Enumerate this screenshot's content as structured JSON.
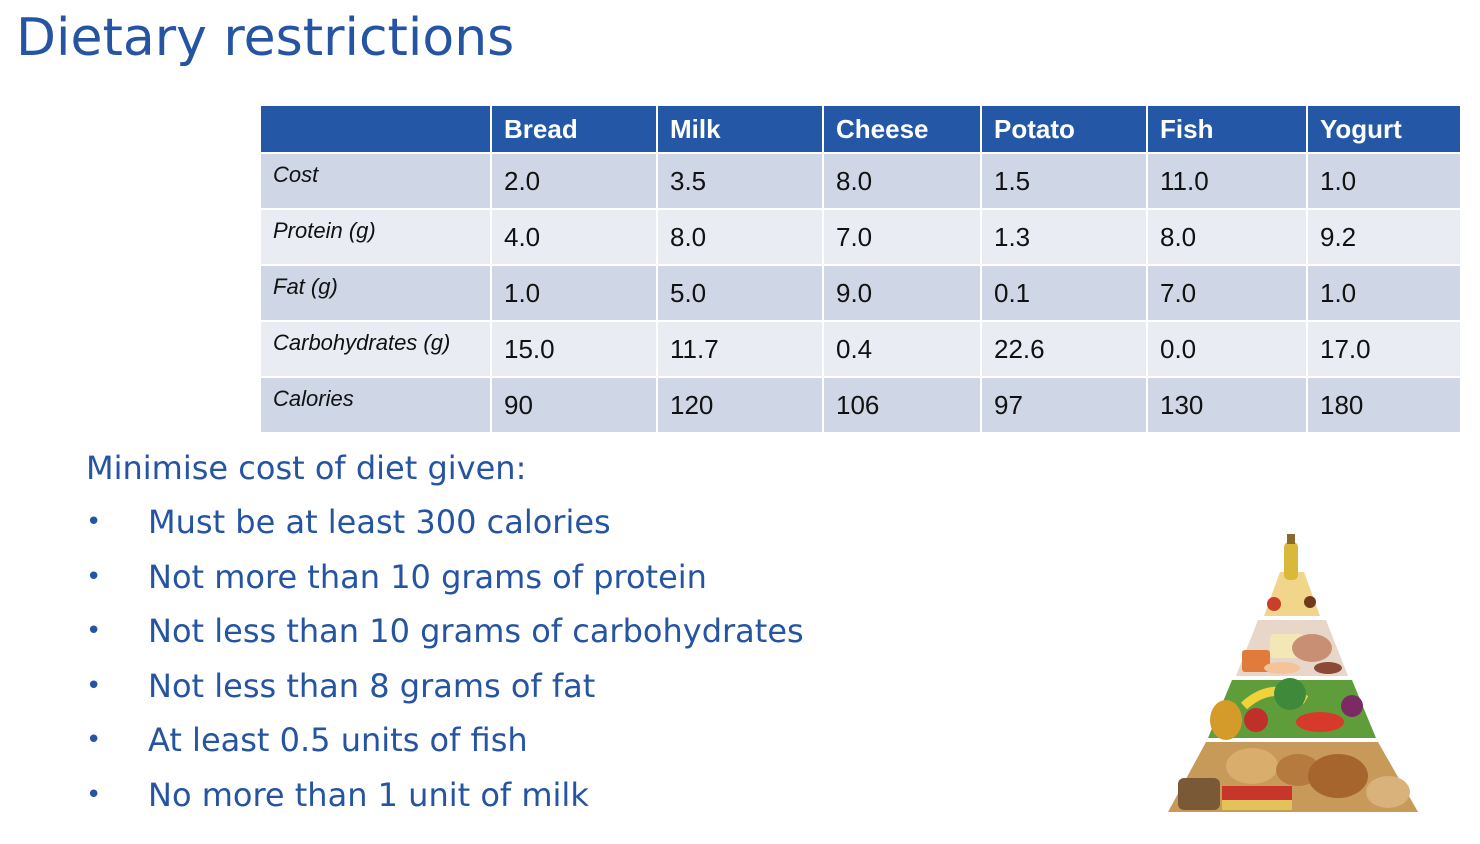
{
  "slide": {
    "title": "Dietary restrictions"
  },
  "table": {
    "corner": "",
    "columns": [
      "Bread",
      "Milk",
      "Cheese",
      "Potato",
      "Fish",
      "Yogurt"
    ],
    "rows": [
      {
        "label": "Cost",
        "values": [
          "2.0",
          "3.5",
          "8.0",
          "1.5",
          "11.0",
          "1.0"
        ]
      },
      {
        "label": "Protein (g)",
        "values": [
          "4.0",
          "8.0",
          "7.0",
          "1.3",
          "8.0",
          "9.2"
        ]
      },
      {
        "label": "Fat (g)",
        "values": [
          "1.0",
          "5.0",
          "9.0",
          "0.1",
          "7.0",
          "1.0"
        ]
      },
      {
        "label": "Carbohydrates (g)",
        "values": [
          "15.0",
          "11.7",
          "0.4",
          "22.6",
          "0.0",
          "17.0"
        ]
      },
      {
        "label": "Calories",
        "values": [
          "90",
          "120",
          "106",
          "97",
          "130",
          "180"
        ]
      }
    ]
  },
  "constraints": {
    "intro": "Minimise cost of diet given:",
    "bullet_symbol": "•",
    "items": [
      "Must be at least 300 calories",
      "Not more than 10 grams of protein",
      "Not less than 10 grams of carbohydrates",
      "Not less than 8 grams of fat",
      "At least 0.5 units of fish",
      "No more than 1 unit of milk"
    ]
  },
  "colors": {
    "title_text": "#2554a3",
    "header_fill": "#2458a6",
    "row_fill_odd": "#cfd6e5",
    "row_fill_even": "#e9ecf3"
  },
  "image": {
    "icon": "food-pyramid-icon"
  }
}
